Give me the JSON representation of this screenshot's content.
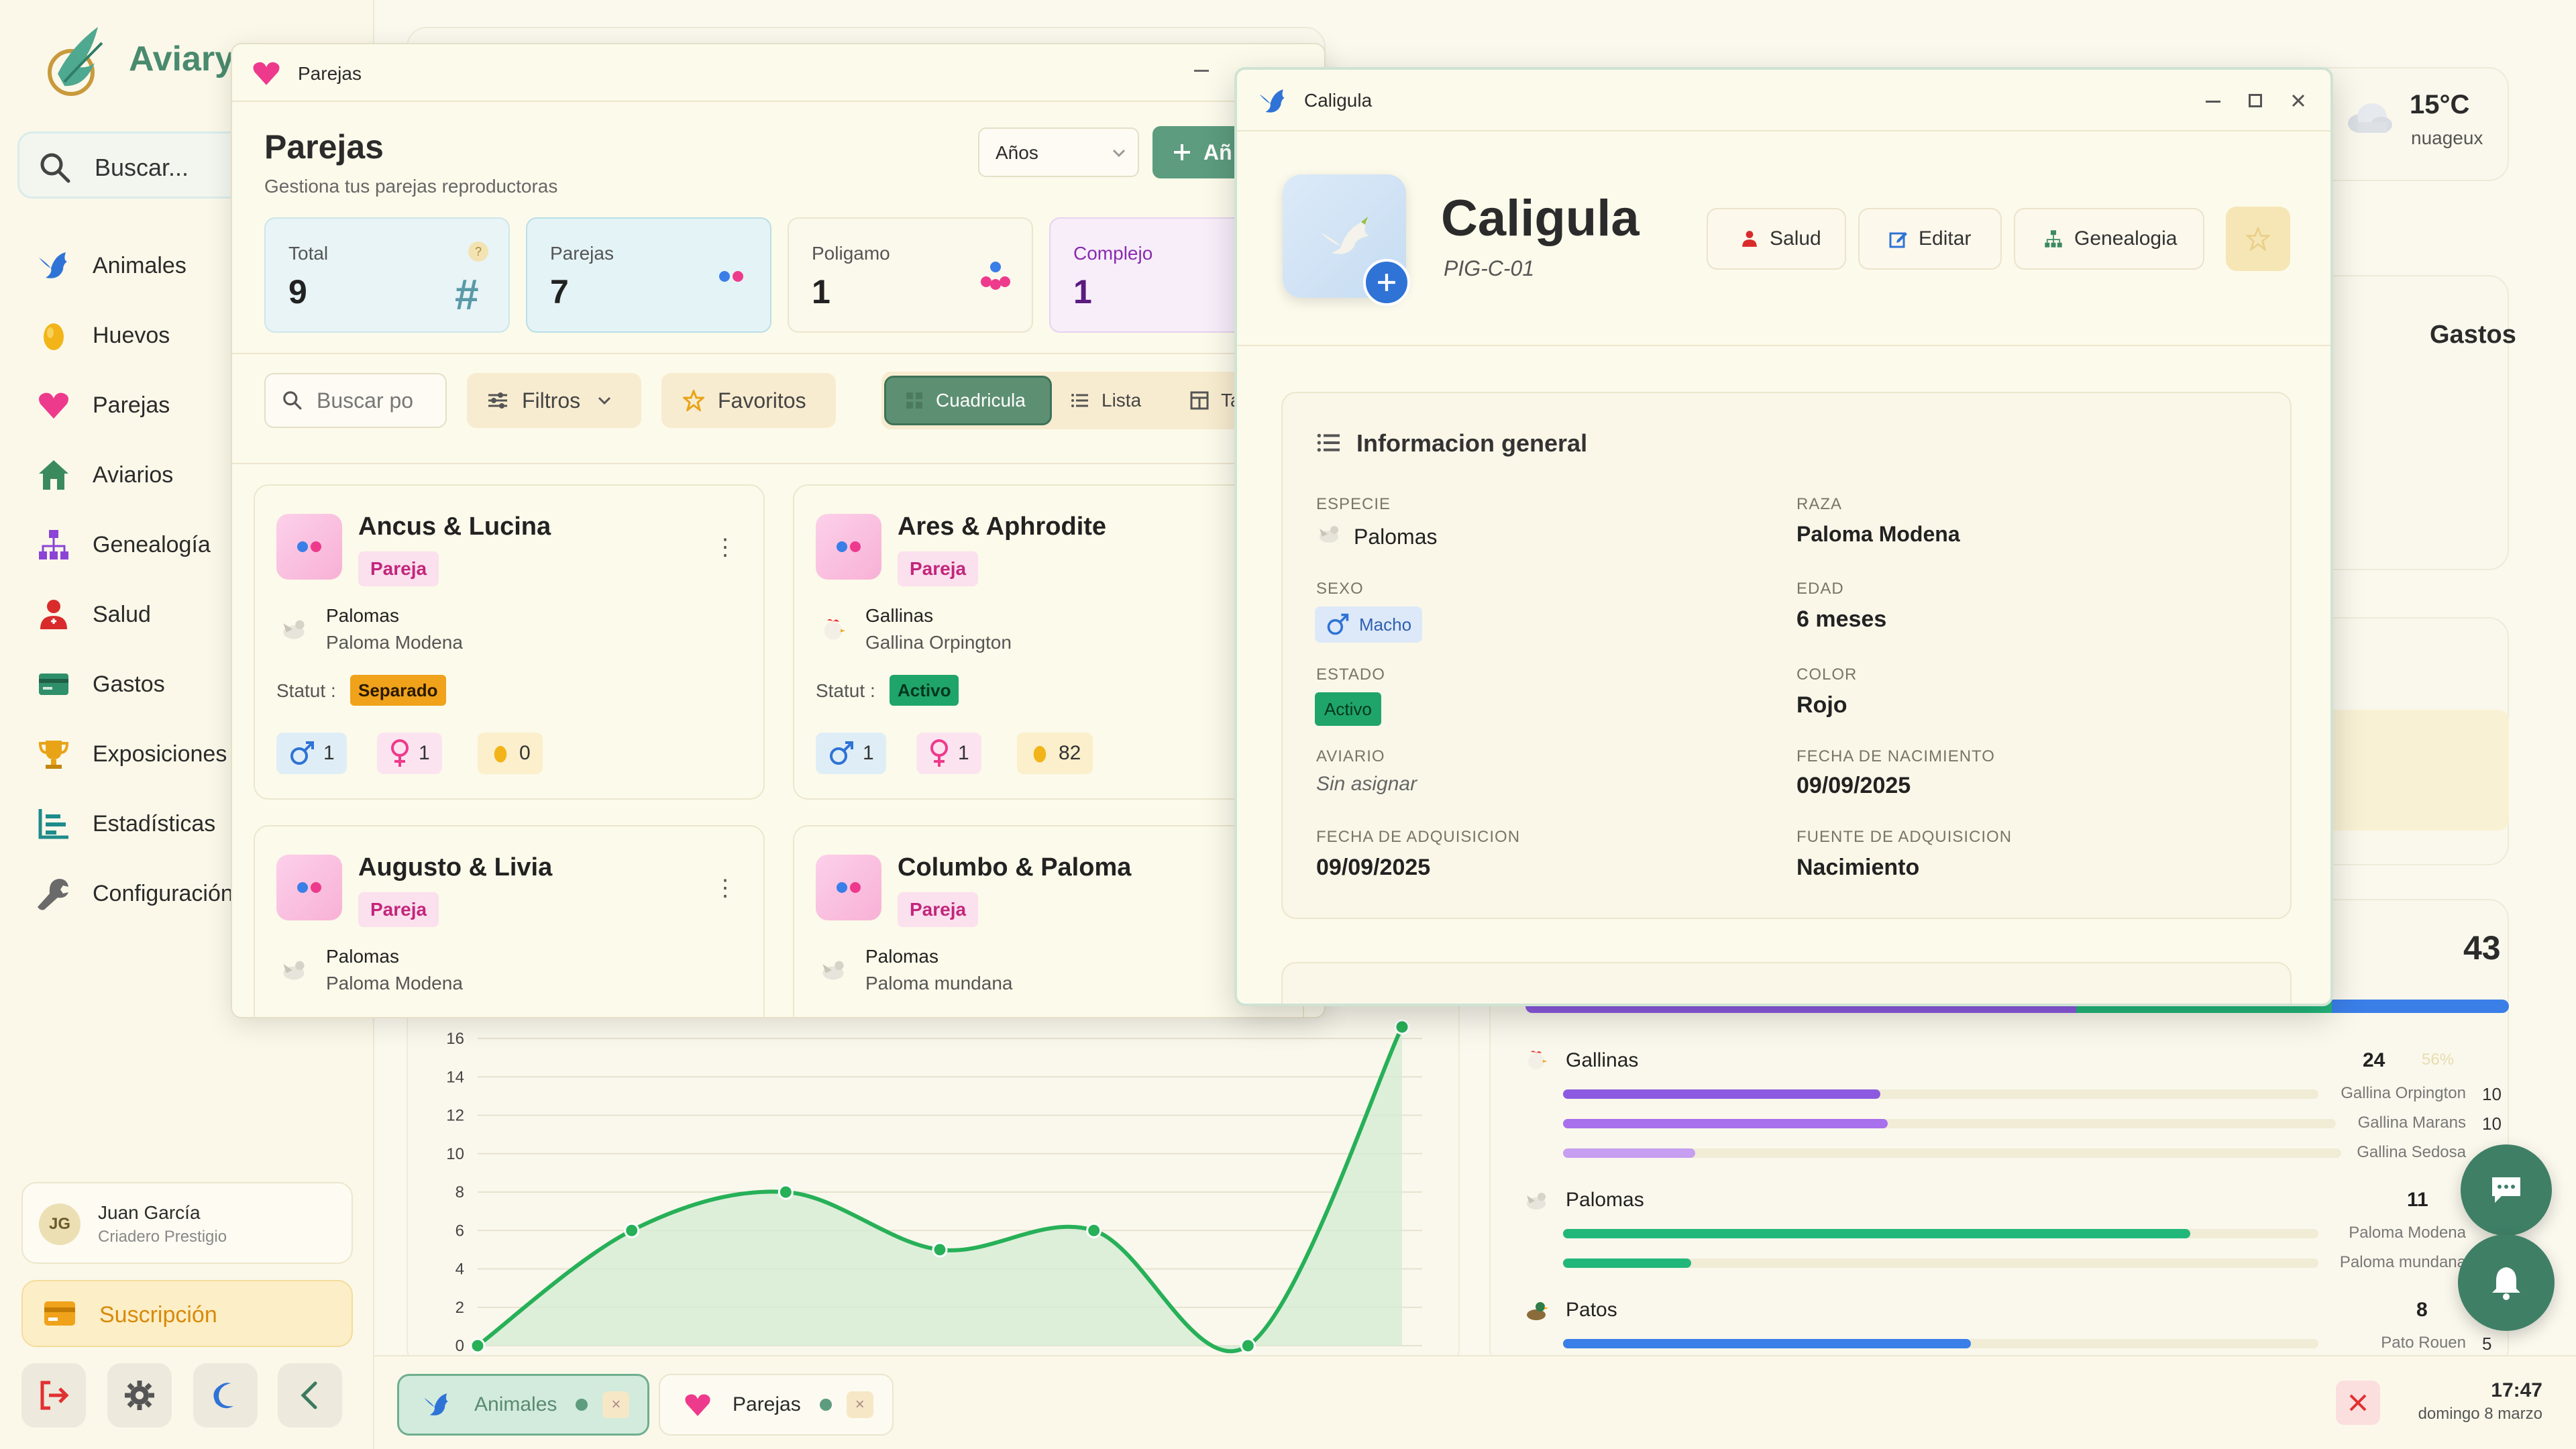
{
  "app": {
    "name": "Aviary",
    "search_placeholder": "Buscar..."
  },
  "sidebar": {
    "items": [
      {
        "label": "Animales",
        "icon": "bird-icon"
      },
      {
        "label": "Huevos",
        "icon": "egg-icon"
      },
      {
        "label": "Parejas",
        "icon": "heart-icon"
      },
      {
        "label": "Aviarios",
        "icon": "home-icon"
      },
      {
        "label": "Genealogía",
        "icon": "tree-icon"
      },
      {
        "label": "Salud",
        "icon": "health-icon"
      },
      {
        "label": "Gastos",
        "icon": "card-icon"
      },
      {
        "label": "Exposiciones",
        "icon": "trophy-icon"
      },
      {
        "label": "Estadísticas",
        "icon": "stats-icon"
      },
      {
        "label": "Configuración",
        "icon": "wrench-icon"
      }
    ],
    "user": {
      "initials": "JG",
      "name": "Juan García",
      "subtitle": "Criadero Prestigio"
    },
    "subscription": "Suscripción"
  },
  "colors": {
    "accent": "#4a8a6e",
    "primary_button": "#5d9c7e",
    "pink": "#c2267c",
    "green_status": "#1fa56a",
    "orange_status": "#f0a21a"
  },
  "dashboard": {
    "weather": {
      "temp": "15°C",
      "desc": "nuageux"
    },
    "gastos_title": "Gastos",
    "total_count": "43",
    "species": [
      {
        "name": "Gallinas",
        "count": "24",
        "pct": "56%",
        "breeds": [
          {
            "name": "Gallina Orpington",
            "count": "10"
          },
          {
            "name": "Gallina Marans",
            "count": "10"
          },
          {
            "name": "Gallina Sedosa",
            "count": ""
          }
        ]
      },
      {
        "name": "Palomas",
        "count": "11",
        "pct": "",
        "breeds": [
          {
            "name": "Paloma Modena",
            "count": ""
          },
          {
            "name": "Paloma mundana",
            "count": ""
          }
        ]
      },
      {
        "name": "Patos",
        "count": "8",
        "pct": "",
        "breeds": [
          {
            "name": "Pato Rouen",
            "count": "5"
          }
        ]
      }
    ]
  },
  "chart_data": {
    "type": "area",
    "title": "",
    "xlabel": "",
    "ylabel": "",
    "ylim": [
      0,
      16
    ],
    "yticks": [
      "16",
      "14",
      "12",
      "10",
      "8",
      "6",
      "4",
      "2",
      "0"
    ],
    "values": [
      0,
      6,
      8,
      5,
      6,
      0,
      17
    ]
  },
  "parejas_window": {
    "title": "Parejas",
    "heading": "Parejas",
    "subtitle": "Gestiona tus parejas reproductoras",
    "year_select": "Años",
    "add_button": "Añ",
    "stats": [
      {
        "label": "Total",
        "value": "9",
        "badge": "?"
      },
      {
        "label": "Parejas",
        "value": "7"
      },
      {
        "label": "Poligamo",
        "value": "1"
      },
      {
        "label": "Complejo",
        "value": "1"
      }
    ],
    "search_placeholder": "Buscar po",
    "filters": "Filtros",
    "favorites": "Favoritos",
    "views": [
      "Cuadricula",
      "Lista",
      "Ta"
    ],
    "status_label": "Statut :",
    "cards": [
      {
        "name": "Ancus & Lucina",
        "tag": "Pareja",
        "species": "Palomas",
        "breed": "Paloma Modena",
        "status": "Separado",
        "males": "1",
        "females": "1",
        "eggs": "0"
      },
      {
        "name": "Ares & Aphrodite",
        "tag": "Pareja",
        "species": "Gallinas",
        "breed": "Gallina Orpington",
        "status": "Activo",
        "males": "1",
        "females": "1",
        "eggs": "82"
      },
      {
        "name": "Augusto & Livia",
        "tag": "Pareja",
        "species": "Palomas",
        "breed": "Paloma Modena",
        "status": "",
        "males": "",
        "females": "",
        "eggs": ""
      },
      {
        "name": "Columbo & Paloma",
        "tag": "Pareja",
        "species": "Palomas",
        "breed": "Paloma mundana",
        "status": "",
        "males": "",
        "females": "",
        "eggs": ""
      }
    ]
  },
  "caligula_window": {
    "title": "Caligula",
    "name": "Caligula",
    "code": "PIG-C-01",
    "actions": [
      "Salud",
      "Editar",
      "Genealogia"
    ],
    "section_title": "Informacion general",
    "fields": {
      "especie": {
        "label": "ESPECIE",
        "value": "Palomas"
      },
      "raza": {
        "label": "RAZA",
        "value": "Paloma Modena"
      },
      "sexo": {
        "label": "SEXO",
        "value": "Macho"
      },
      "edad": {
        "label": "EDAD",
        "value": "6 meses"
      },
      "estado": {
        "label": "ESTADO",
        "value": "Activo"
      },
      "color": {
        "label": "COLOR",
        "value": "Rojo"
      },
      "aviario": {
        "label": "AVIARIO",
        "value": "Sin asignar"
      },
      "nacimiento": {
        "label": "FECHA DE NACIMIENTO",
        "value": "09/09/2025"
      },
      "adquisicion": {
        "label": "FECHA DE ADQUISICION",
        "value": "09/09/2025"
      },
      "fuente": {
        "label": "FUENTE DE ADQUISICION",
        "value": "Nacimiento"
      }
    }
  },
  "taskbar": {
    "tasks": [
      {
        "label": "Animales"
      },
      {
        "label": "Parejas"
      }
    ],
    "time": "17:47",
    "date": "domingo 8 marzo"
  }
}
